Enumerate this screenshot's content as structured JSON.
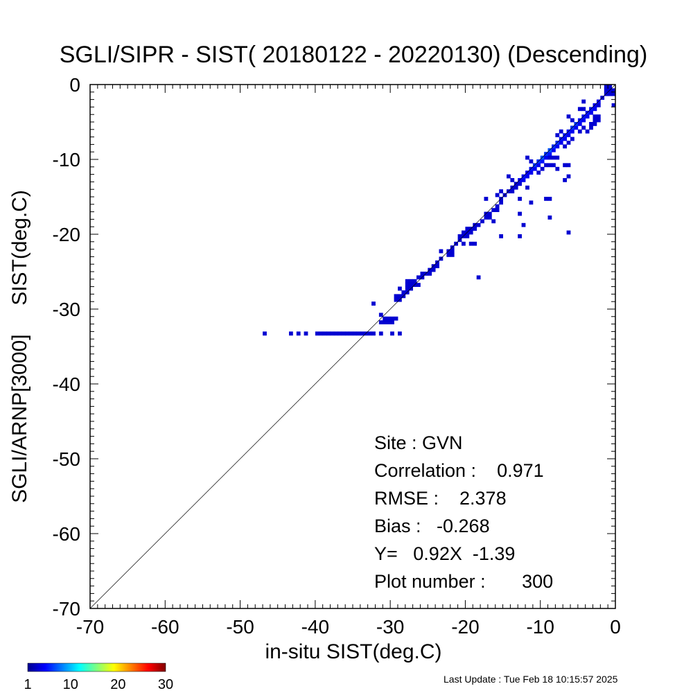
{
  "chart_data": {
    "type": "heatmap",
    "title": "SGLI/SIPR - SIST( 20180122 - 20220130) (Descending)",
    "xlabel": "in-situ SIST(deg.C)",
    "ylabel": "SGLI/ARNP[3000]     SIST(deg.C)",
    "xlim": [
      -70,
      0
    ],
    "ylim": [
      -70,
      0
    ],
    "x_ticks": [
      "-70",
      "-60",
      "-50",
      "-40",
      "-30",
      "-20",
      "-10",
      "0"
    ],
    "y_ticks": [
      "0",
      "-10",
      "-20",
      "-30",
      "-40",
      "-50",
      "-60",
      "-70"
    ],
    "reference_line": "y = x",
    "cell_size": 0.5,
    "colorbar": {
      "min": 1,
      "max": 30,
      "ticks": [
        "1",
        "10",
        "20",
        "30"
      ],
      "colormap": "jet"
    },
    "stats": {
      "site": "Site : GVN",
      "correlation": "Correlation :    0.971",
      "rmse": "RMSE :    2.378",
      "bias": "Bias :   -0.268",
      "regression": "Y=   0.92X  -1.39",
      "plot_number": "Plot number :       300"
    },
    "cells": [
      [
        -47,
        -33.5,
        1
      ],
      [
        -43.5,
        -33.5,
        1
      ],
      [
        -42.5,
        -33.5,
        1
      ],
      [
        -41.5,
        -33.5,
        1
      ],
      [
        -40,
        -33.5,
        1
      ],
      [
        -39.5,
        -33.5,
        1
      ],
      [
        -39,
        -33.5,
        1
      ],
      [
        -38.5,
        -33.5,
        1
      ],
      [
        -38,
        -33.5,
        1
      ],
      [
        -37.5,
        -33.5,
        1
      ],
      [
        -37,
        -33.5,
        1
      ],
      [
        -36.5,
        -33.5,
        1
      ],
      [
        -36,
        -33.5,
        1
      ],
      [
        -35.5,
        -33.5,
        1
      ],
      [
        -35,
        -33.5,
        1
      ],
      [
        -34.5,
        -33.5,
        1
      ],
      [
        -34,
        -33.5,
        1
      ],
      [
        -33.5,
        -33.5,
        1
      ],
      [
        -33,
        -33.5,
        1
      ],
      [
        -32.5,
        -33.5,
        1
      ],
      [
        -31.5,
        -33.5,
        1
      ],
      [
        -30,
        -33.5,
        1
      ],
      [
        -29,
        -33.5,
        1
      ],
      [
        -32.5,
        -29.5,
        1
      ],
      [
        -31.5,
        -31,
        1
      ],
      [
        -31.5,
        -32,
        1
      ],
      [
        -31,
        -32,
        1
      ],
      [
        -30.5,
        -32,
        1
      ],
      [
        -30,
        -32,
        1
      ],
      [
        -31,
        -31.5,
        1
      ],
      [
        -30.5,
        -31.5,
        1
      ],
      [
        -30,
        -31.5,
        1
      ],
      [
        -29.5,
        -31.5,
        1
      ],
      [
        -29.5,
        -29,
        1
      ],
      [
        -29,
        -29,
        1
      ],
      [
        -29.5,
        -28.5,
        1
      ],
      [
        -29,
        -28.5,
        1
      ],
      [
        -28.5,
        -28.5,
        1
      ],
      [
        -28.5,
        -28,
        1
      ],
      [
        -28,
        -28,
        1
      ],
      [
        -28,
        -27.5,
        1
      ],
      [
        -27.5,
        -27.5,
        1
      ],
      [
        -29,
        -27.5,
        1
      ],
      [
        -28,
        -27,
        1
      ],
      [
        -27.5,
        -27,
        1
      ],
      [
        -27,
        -27,
        1
      ],
      [
        -26.5,
        -27,
        1
      ],
      [
        -28,
        -26.5,
        1
      ],
      [
        -27.5,
        -26.5,
        1
      ],
      [
        -27,
        -26.5,
        1
      ],
      [
        -26.5,
        -26,
        1
      ],
      [
        -26,
        -26,
        1
      ],
      [
        -25.5,
        -25.5,
        1
      ],
      [
        -25,
        -25.5,
        1
      ],
      [
        -26,
        -25.5,
        1
      ],
      [
        -25,
        -25,
        1
      ],
      [
        -24.5,
        -25,
        1
      ],
      [
        -24.5,
        -24.5,
        1
      ],
      [
        -24,
        -24.5,
        1
      ],
      [
        -24,
        -24,
        1
      ],
      [
        -23.5,
        -23.5,
        1
      ],
      [
        -23.5,
        -22.5,
        1
      ],
      [
        -22.5,
        -22.5,
        1
      ],
      [
        -22.5,
        -23,
        1
      ],
      [
        -22,
        -23,
        1
      ],
      [
        -22,
        -22.5,
        1
      ],
      [
        -22,
        -22,
        1
      ],
      [
        -21.5,
        -21.5,
        1
      ],
      [
        -21,
        -21,
        1
      ],
      [
        -20.5,
        -20.5,
        1
      ],
      [
        -20,
        -20.5,
        1
      ],
      [
        -21,
        -20.5,
        1
      ],
      [
        -20.5,
        -20,
        1
      ],
      [
        -20,
        -20,
        1
      ],
      [
        -19.5,
        -20,
        1
      ],
      [
        -20,
        -19.5,
        1
      ],
      [
        -19.5,
        -19.5,
        1
      ],
      [
        -19,
        -19.5,
        1
      ],
      [
        -20.5,
        -21.5,
        1
      ],
      [
        -19.5,
        -21.5,
        1
      ],
      [
        -19,
        -21.5,
        1
      ],
      [
        -19,
        -19,
        1
      ],
      [
        -18.5,
        -19,
        1
      ],
      [
        -18,
        -18.5,
        1
      ],
      [
        -17.5,
        -18,
        1
      ],
      [
        -17,
        -18,
        1
      ],
      [
        -17.5,
        -17.5,
        1
      ],
      [
        -17,
        -17.5,
        1
      ],
      [
        -16.5,
        -17,
        1
      ],
      [
        -16,
        -17,
        1
      ],
      [
        -16,
        -16.5,
        1
      ],
      [
        -15.5,
        -16,
        1
      ],
      [
        -15.5,
        -15.5,
        1
      ],
      [
        -16,
        -15,
        1
      ],
      [
        -15.5,
        -14.5,
        1
      ],
      [
        -17.5,
        -15.5,
        1
      ],
      [
        -16.5,
        -18.5,
        1
      ],
      [
        -18.5,
        -26,
        1
      ],
      [
        -15.5,
        -20.5,
        1
      ],
      [
        -15,
        -15,
        1
      ],
      [
        -14.5,
        -14.5,
        1
      ],
      [
        -14,
        -14.5,
        1
      ],
      [
        -14,
        -14,
        1
      ],
      [
        -13.5,
        -14,
        1
      ],
      [
        -13.5,
        -13.5,
        1
      ],
      [
        -13,
        -13.5,
        1
      ],
      [
        -13,
        -13,
        2
      ],
      [
        -12.5,
        -13,
        2
      ],
      [
        -12.5,
        -12.5,
        3
      ],
      [
        -12,
        -12.5,
        2
      ],
      [
        -12,
        -12,
        2
      ],
      [
        -11.5,
        -12,
        2
      ],
      [
        -11.5,
        -11.5,
        3
      ],
      [
        -11,
        -11.5,
        2
      ],
      [
        -11,
        -11,
        4
      ],
      [
        -10.5,
        -11,
        2
      ],
      [
        -10.5,
        -10.5,
        4
      ],
      [
        -10,
        -10.5,
        3
      ],
      [
        -10,
        -10,
        5
      ],
      [
        -9.5,
        -10,
        2
      ],
      [
        -9.5,
        -9.5,
        4
      ],
      [
        -9,
        -9.5,
        3
      ],
      [
        -9,
        -9,
        5
      ],
      [
        -8.5,
        -9,
        2
      ],
      [
        -8.5,
        -8.5,
        4
      ],
      [
        -8,
        -8.5,
        2
      ],
      [
        -8,
        -8,
        4
      ],
      [
        -7.5,
        -8,
        2
      ],
      [
        -7.5,
        -7.5,
        3
      ],
      [
        -7,
        -7.5,
        2
      ],
      [
        -7,
        -7,
        3
      ],
      [
        -6.5,
        -7,
        2
      ],
      [
        -6.5,
        -6.5,
        3
      ],
      [
        -6,
        -6.5,
        2
      ],
      [
        -6,
        -6,
        4
      ],
      [
        -5.5,
        -6,
        2
      ],
      [
        -5.5,
        -5.5,
        4
      ],
      [
        -5,
        -5.5,
        2
      ],
      [
        -5,
        -5,
        3
      ],
      [
        -4.5,
        -5,
        2
      ],
      [
        -4.5,
        -4.5,
        3
      ],
      [
        -4,
        -4.5,
        2
      ],
      [
        -4,
        -4,
        3
      ],
      [
        -3.5,
        -4,
        2
      ],
      [
        -3.5,
        -3.5,
        3
      ],
      [
        -3,
        -3.5,
        2
      ],
      [
        -3,
        -3,
        2
      ],
      [
        -2.5,
        -3,
        1
      ],
      [
        -2.5,
        -2.5,
        2
      ],
      [
        -2,
        -2,
        1
      ],
      [
        -1.5,
        -1.5,
        1
      ],
      [
        -1,
        -1,
        1
      ],
      [
        -1.5,
        -0.5,
        1
      ],
      [
        -1,
        -0.5,
        1
      ],
      [
        -14.5,
        -12.5,
        1
      ],
      [
        -14,
        -13,
        1
      ],
      [
        -13,
        -15.5,
        1
      ],
      [
        -11.5,
        -16,
        1
      ],
      [
        -12,
        -14,
        1
      ],
      [
        -13,
        -17.5,
        1
      ],
      [
        -12.5,
        -19,
        1
      ],
      [
        -13,
        -20.5,
        1
      ],
      [
        -9.5,
        -15.5,
        1
      ],
      [
        -9,
        -15.5,
        1
      ],
      [
        -9,
        -18,
        1
      ],
      [
        -6.5,
        -20,
        1
      ],
      [
        -12,
        -10,
        1
      ],
      [
        -11.5,
        -10.5,
        1
      ],
      [
        -10,
        -11.5,
        1
      ],
      [
        -9.5,
        -11,
        1
      ],
      [
        -8.5,
        -11,
        1
      ],
      [
        -10.5,
        -12,
        1
      ],
      [
        -8,
        -11.5,
        1
      ],
      [
        -7,
        -11,
        1
      ],
      [
        -6.5,
        -11,
        1
      ],
      [
        -7,
        -13,
        1
      ],
      [
        -6.5,
        -12.5,
        1
      ],
      [
        -9,
        -10,
        1
      ],
      [
        -8,
        -10,
        1
      ],
      [
        -8,
        -7,
        1
      ],
      [
        -7.5,
        -6.5,
        1
      ],
      [
        -6,
        -5,
        1
      ],
      [
        -6.5,
        -4.5,
        1
      ],
      [
        -5,
        -3.5,
        1
      ],
      [
        -4.5,
        -3.5,
        1
      ],
      [
        -3.5,
        -5.5,
        1
      ],
      [
        -3,
        -5.5,
        1
      ],
      [
        -3.5,
        -6,
        1
      ],
      [
        -3,
        -4.5,
        1
      ],
      [
        -3,
        -5,
        1
      ],
      [
        -2.5,
        -5,
        1
      ],
      [
        -2.5,
        -4.5,
        1
      ],
      [
        -4,
        -6.5,
        1
      ],
      [
        -4.5,
        -6,
        1
      ],
      [
        -5,
        -6.5,
        1
      ],
      [
        -6,
        -7.5,
        1
      ],
      [
        -6.5,
        -8,
        1
      ],
      [
        -7,
        -8.5,
        1
      ],
      [
        -8.5,
        -10,
        1
      ],
      [
        -9,
        -11,
        1
      ],
      [
        -1,
        -1.5,
        1
      ],
      [
        -0.5,
        -1,
        1
      ],
      [
        -0.5,
        -1.5,
        1
      ],
      [
        -1.5,
        -1,
        1
      ],
      [
        -0.5,
        -3,
        1
      ],
      [
        -4.5,
        -2.5,
        1
      ]
    ]
  },
  "footer": {
    "last_update": "Last Update : Tue Feb 18 10:15:57 2025"
  }
}
